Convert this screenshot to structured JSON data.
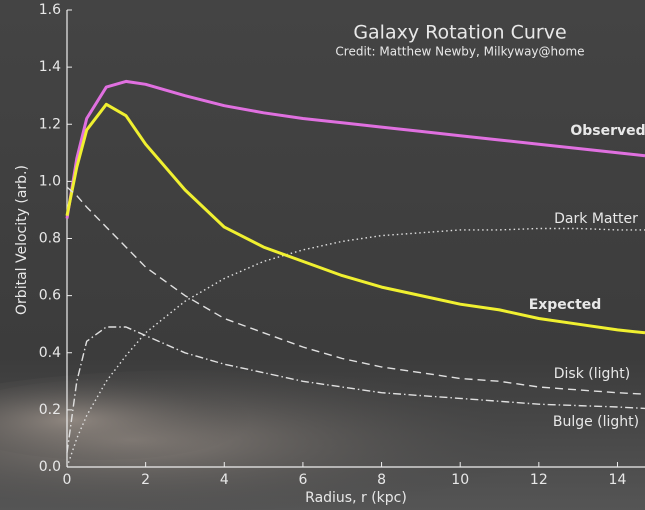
{
  "chart_data": {
    "type": "line",
    "title": "Galaxy Rotation Curve",
    "subtitle": "Credit:  Matthew Newby, Milkyway@home",
    "x_label": "Radius, r (kpc)",
    "y_label": "Orbital Velocity (arb.)",
    "xlim": [
      0,
      14.7
    ],
    "ylim": [
      0,
      1.6
    ],
    "xticks": [
      0,
      2,
      4,
      6,
      8,
      10,
      12,
      14
    ],
    "yticks": [
      {
        "value": 0,
        "label": "0.0"
      },
      0.2,
      0.4,
      0.6,
      0.8,
      {
        "value": 1,
        "label": "1.0"
      },
      1.2,
      1.4,
      1.6
    ],
    "x": [
      0,
      0.25,
      0.5,
      1,
      1.5,
      2,
      3,
      4,
      5,
      6,
      7,
      8,
      9,
      10,
      11,
      12,
      13,
      14,
      14.7
    ],
    "series": [
      {
        "name": "Observed",
        "color": "#e070e0",
        "linestyle": "solid",
        "values": [
          0.87,
          1.08,
          1.22,
          1.33,
          1.35,
          1.34,
          1.3,
          1.265,
          1.24,
          1.22,
          1.205,
          1.19,
          1.175,
          1.16,
          1.145,
          1.13,
          1.115,
          1.1,
          1.09
        ]
      },
      {
        "name": "Dark Matter",
        "color": "#e0e0e0",
        "linestyle": "dotted",
        "values": [
          0,
          0.1,
          0.18,
          0.3,
          0.39,
          0.47,
          0.58,
          0.66,
          0.72,
          0.76,
          0.79,
          0.81,
          0.82,
          0.83,
          0.83,
          0.835,
          0.835,
          0.83,
          0.83
        ]
      },
      {
        "name": "Expected",
        "color": "#f0f030",
        "linestyle": "solid",
        "values": [
          0.88,
          1.05,
          1.18,
          1.27,
          1.23,
          1.13,
          0.97,
          0.84,
          0.77,
          0.72,
          0.67,
          0.63,
          0.6,
          0.57,
          0.55,
          0.52,
          0.5,
          0.48,
          0.47
        ]
      },
      {
        "name": "Disk (light)",
        "color": "#e0e0e0",
        "linestyle": "dashed",
        "values": [
          0.98,
          0.95,
          0.91,
          0.84,
          0.77,
          0.7,
          0.6,
          0.52,
          0.47,
          0.42,
          0.38,
          0.35,
          0.33,
          0.31,
          0.3,
          0.28,
          0.27,
          0.26,
          0.255
        ]
      },
      {
        "name": "Bulge (light)",
        "color": "#e0e0e0",
        "linestyle": "dashdot",
        "values": [
          0.05,
          0.3,
          0.44,
          0.49,
          0.49,
          0.46,
          0.4,
          0.36,
          0.33,
          0.3,
          0.28,
          0.26,
          0.25,
          0.24,
          0.23,
          0.22,
          0.215,
          0.21,
          0.205
        ]
      }
    ]
  }
}
